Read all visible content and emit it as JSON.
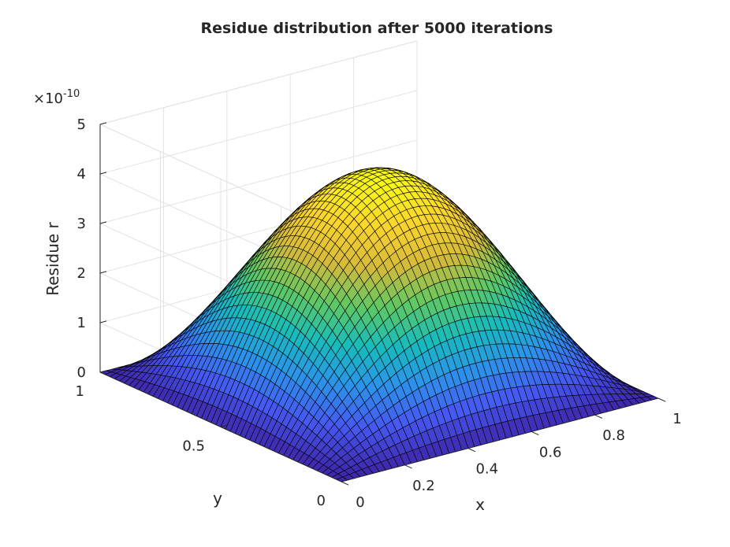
{
  "chart_data": {
    "type": "surface",
    "title": "Residue distribution after 5000 iterations",
    "xlabel": "x",
    "ylabel": "y",
    "zlabel": "Residue r",
    "z_exponent_label": "×10",
    "z_exponent_power": "-10",
    "xlim": [
      0,
      1
    ],
    "ylim": [
      0,
      1
    ],
    "zlim": [
      0,
      5
    ],
    "x_ticks": [
      "0",
      "0.2",
      "0.4",
      "0.6",
      "0.8",
      "1"
    ],
    "y_ticks": [
      "0",
      "0.5",
      "1"
    ],
    "z_ticks": [
      "0",
      "1",
      "2",
      "3",
      "4",
      "5"
    ],
    "x_tick_values": [
      0,
      0.2,
      0.4,
      0.6,
      0.8,
      1
    ],
    "y_tick_values": [
      0,
      0.5,
      1
    ],
    "z_tick_values": [
      0,
      1,
      2,
      3,
      4,
      5
    ],
    "function": "r(x,y) = A * sin(pi*x) * sin(pi*y)",
    "amplitude": 4.3,
    "amplitude_units": "×10^-10",
    "grid_points": 51,
    "colormap": "parula",
    "colormap_stops": [
      "#3e26a8",
      "#4658f1",
      "#2c93ea",
      "#17bcbc",
      "#5ec864",
      "#d5ba3a",
      "#fbd52c",
      "#f9fb15"
    ],
    "grid": true,
    "view": "3d-azimuth-elevation"
  }
}
